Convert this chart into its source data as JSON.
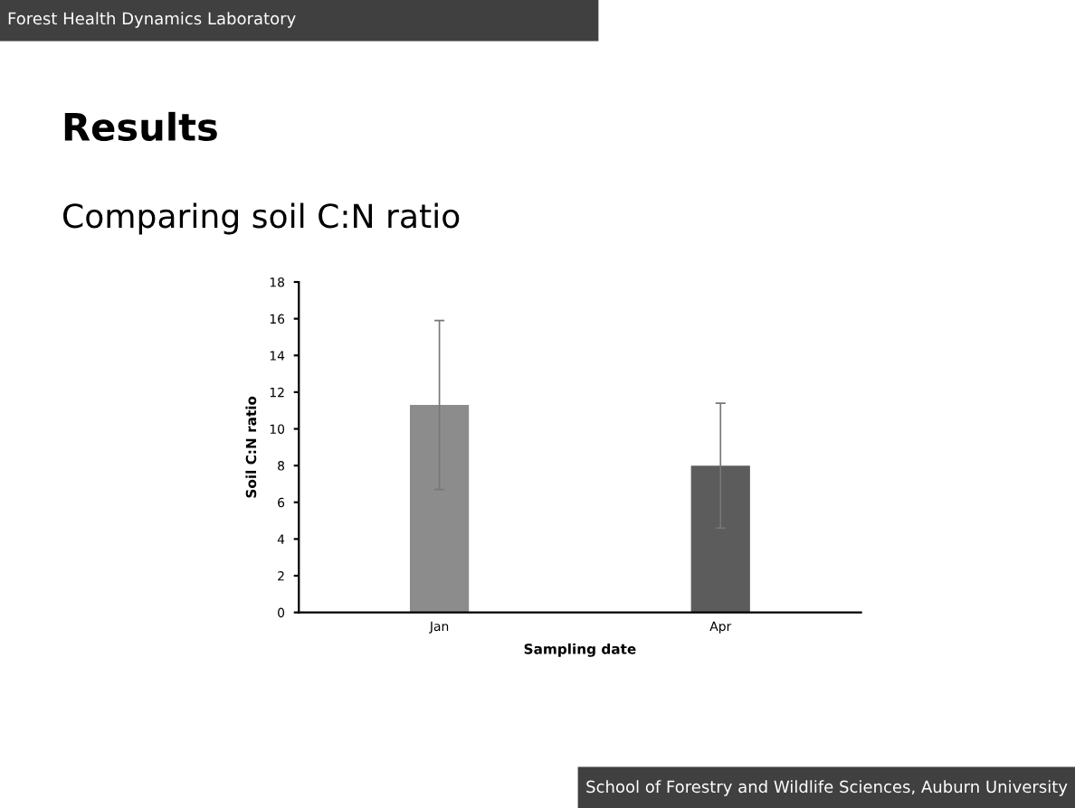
{
  "chart_data": {
    "type": "bar",
    "title": "Results",
    "subtitle": "Comparing soil C:N ratio",
    "annotations": [
      "Forest Health Dynamics Laboratory",
      "School of Forestry and Wildlife Sciences, Auburn University"
    ],
    "xlabel": "Sampling date",
    "ylabel": "Soil C:N ratio",
    "categories": [
      "Jan",
      "Apr"
    ],
    "values": [
      11.3,
      8.0
    ],
    "errors": [
      4.6,
      3.4
    ],
    "colors": [
      "#8c8c8c",
      "#5c5c5c"
    ],
    "ylim": [
      0,
      18
    ],
    "yticks": [
      0,
      2,
      4,
      6,
      8,
      10,
      12,
      14,
      16,
      18
    ],
    "grid": false,
    "legend": false
  }
}
